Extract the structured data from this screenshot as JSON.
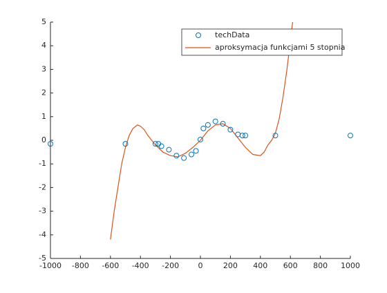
{
  "chart_data": {
    "type": "scatter",
    "xlim": [
      -1000,
      1000
    ],
    "xticks": [
      -1000,
      -800,
      -600,
      -400,
      -200,
      0,
      200,
      400,
      600,
      800,
      1000
    ],
    "ylim": [
      -5,
      5
    ],
    "yticks": [
      -5,
      -4,
      -3,
      -2,
      -1,
      0,
      1,
      2,
      3,
      4,
      5
    ],
    "legend": "top-right",
    "series": [
      {
        "name": "techData",
        "type": "scatter",
        "color": "#0072bd",
        "x": [
          -1000,
          -500,
          -300,
          -280,
          -260,
          -210,
          -160,
          -110,
          -60,
          -30,
          0,
          20,
          50,
          100,
          150,
          200,
          250,
          280,
          300,
          500,
          1000
        ],
        "values": [
          -0.15,
          -0.15,
          -0.15,
          -0.15,
          -0.25,
          -0.4,
          -0.65,
          -0.75,
          -0.6,
          -0.45,
          0.03,
          0.5,
          0.65,
          0.8,
          0.7,
          0.45,
          0.25,
          0.2,
          0.2,
          0.2,
          0.2
        ]
      },
      {
        "name": "aproksymacja funkcjami 5 stopnia",
        "type": "line",
        "color": "#d95319",
        "x": [
          -600,
          -575,
          -550,
          -525,
          -500,
          -475,
          -450,
          -420,
          -400,
          -375,
          -350,
          -300,
          -250,
          -200,
          -150,
          -100,
          -50,
          0,
          50,
          100,
          150,
          200,
          250,
          300,
          350,
          400,
          425,
          450,
          475,
          500,
          525,
          550,
          575,
          600,
          615
        ],
        "values": [
          -4.2,
          -3.0,
          -2.0,
          -1.0,
          -0.3,
          0.2,
          0.5,
          0.65,
          0.6,
          0.45,
          0.2,
          -0.2,
          -0.5,
          -0.65,
          -0.7,
          -0.55,
          -0.3,
          0,
          0.4,
          0.65,
          0.7,
          0.5,
          0.1,
          -0.3,
          -0.6,
          -0.65,
          -0.5,
          -0.2,
          0.0,
          0.3,
          0.9,
          1.8,
          2.9,
          4.2,
          5.0
        ]
      }
    ]
  }
}
